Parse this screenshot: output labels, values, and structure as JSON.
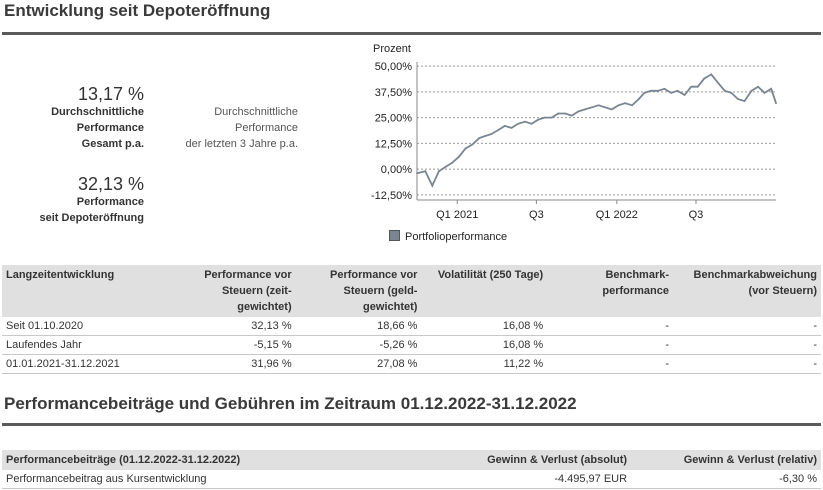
{
  "section1": {
    "title": "Entwicklung seit Depoteröffnung"
  },
  "kpis": {
    "avg_total": {
      "value": "13,17 %",
      "line1": "Durchschnittliche",
      "line2": "Performance",
      "line3": "Gesamt p.a."
    },
    "avg_3y": {
      "line1": "Durchschnittliche",
      "line2": "Performance",
      "line3": "der letzten 3 Jahre p.a."
    },
    "since_open": {
      "value": "32,13 %",
      "line1": "Performance",
      "line2": "seit Depoteröffnung"
    }
  },
  "chart_data": {
    "type": "line",
    "ylabel": "Prozent",
    "ylim": [
      -15,
      52
    ],
    "yticks": [
      50,
      37.5,
      25,
      12.5,
      0,
      -12.5
    ],
    "ytick_labels": [
      "50,00%",
      "37,50%",
      "25,00%",
      "12,50%",
      "0,00%",
      "-12,50%"
    ],
    "xlim": [
      "2020-10-01",
      "2022-12-31"
    ],
    "xticks": [
      "2021-01-01",
      "2021-07-01",
      "2022-01-01",
      "2022-07-01"
    ],
    "xtick_labels": [
      "Q1 2021",
      "Q3",
      "Q1 2022",
      "Q3"
    ],
    "grid": true,
    "legend": "bottom-left",
    "color": "#7b8591",
    "series": [
      {
        "name": "Portfolioperformance",
        "x": [
          "2020-10-01",
          "2020-10-20",
          "2020-11-05",
          "2020-11-20",
          "2020-12-05",
          "2020-12-20",
          "2021-01-05",
          "2021-01-20",
          "2021-02-05",
          "2021-02-20",
          "2021-03-05",
          "2021-03-20",
          "2021-04-05",
          "2021-04-20",
          "2021-05-05",
          "2021-05-20",
          "2021-06-05",
          "2021-06-20",
          "2021-07-05",
          "2021-07-20",
          "2021-08-05",
          "2021-08-20",
          "2021-09-05",
          "2021-09-20",
          "2021-10-05",
          "2021-10-20",
          "2021-11-05",
          "2021-11-20",
          "2021-12-05",
          "2021-12-20",
          "2022-01-05",
          "2022-01-20",
          "2022-02-05",
          "2022-02-20",
          "2022-03-05",
          "2022-03-20",
          "2022-04-05",
          "2022-04-20",
          "2022-05-05",
          "2022-05-20",
          "2022-06-05",
          "2022-06-20",
          "2022-07-05",
          "2022-07-20",
          "2022-08-05",
          "2022-08-20",
          "2022-09-05",
          "2022-09-20",
          "2022-10-05",
          "2022-10-20",
          "2022-11-05",
          "2022-11-20",
          "2022-12-05",
          "2022-12-20",
          "2022-12-31"
        ],
        "values": [
          -2,
          -1,
          -8,
          -1,
          1,
          3,
          6,
          10,
          12,
          15,
          16,
          17,
          19,
          21,
          20,
          22,
          23,
          22,
          24,
          25,
          25,
          27,
          27,
          26,
          28,
          29,
          30,
          31,
          30,
          29,
          31,
          32,
          31,
          34,
          37,
          38,
          38,
          39,
          37,
          38,
          36,
          40,
          40,
          44,
          46,
          42,
          38,
          37,
          34,
          33,
          38,
          40,
          37,
          39,
          32
        ]
      }
    ]
  },
  "table1": {
    "headers": [
      "Langzeitentwicklung",
      "Performance vor Steuern (zeit-gewichtet)",
      "Performance vor Steuern (geld-gewichtet)",
      "Volatilität (250 Tage)",
      "Benchmark-performance",
      "Benchmarkabweichung (vor Steuern)"
    ],
    "rows": [
      [
        "Seit 01.10.2020",
        "32,13 %",
        "18,66 %",
        "16,08 %",
        "-",
        "-"
      ],
      [
        "Laufendes Jahr",
        "-5,15 %",
        "-5,26 %",
        "16,08 %",
        "-",
        "-"
      ],
      [
        "01.01.2021-31.12.2021",
        "31,96 %",
        "27,08 %",
        "11,22 %",
        "-",
        "-"
      ]
    ]
  },
  "section2": {
    "title": "Performancebeiträge und Gebühren im Zeitraum 01.12.2022-31.12.2022"
  },
  "table2": {
    "headers": [
      "Performancebeiträge (01.12.2022-31.12.2022)",
      "Gewinn & Verlust (absolut)",
      "Gewinn & Verlust (relativ)"
    ],
    "rows": [
      [
        "Performancebeitrag aus Kursentwicklung",
        "-4.495,97 EUR",
        "-6,30 %"
      ]
    ]
  }
}
